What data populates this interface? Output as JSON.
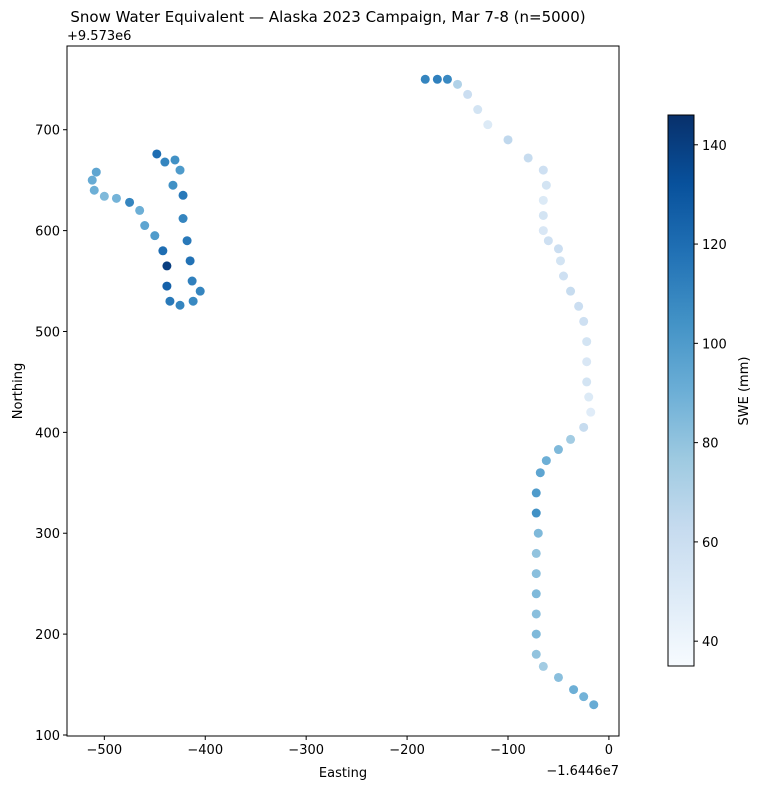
{
  "chart_data": {
    "type": "scatter",
    "title": "Snow Water Equivalent — Alaska 2023 Campaign, Mar 7-8 (n=5000)",
    "xlabel": "Easting",
    "ylabel": "Northing",
    "x_offset_label": "−1.6446e7",
    "y_offset_label": "+9.573e6",
    "xlim": [
      -537,
      10
    ],
    "ylim": [
      99,
      783
    ],
    "xticks": [
      {
        "value": -500,
        "label": "−500"
      },
      {
        "value": -400,
        "label": "−400"
      },
      {
        "value": -300,
        "label": "−300"
      },
      {
        "value": -200,
        "label": "−200"
      },
      {
        "value": -100,
        "label": "−100"
      },
      0
    ],
    "yticks": [
      100,
      200,
      300,
      400,
      500,
      600,
      700
    ],
    "colormap": "Blues",
    "colorbar_label": "SWE (mm)",
    "clim": [
      35,
      146
    ],
    "cticks": [
      40,
      60,
      80,
      100,
      120,
      140
    ],
    "x": [
      -182,
      -170,
      -160,
      -150,
      -140,
      -130,
      -120,
      -100,
      -80,
      -65,
      -62,
      -65,
      -65,
      -65,
      -60,
      -50,
      -48,
      -45,
      -38,
      -30,
      -25,
      -22,
      -22,
      -22,
      -20,
      -18,
      -25,
      -38,
      -50,
      -62,
      -68,
      -72,
      -72,
      -70,
      -72,
      -72,
      -72,
      -72,
      -72,
      -72,
      -65,
      -50,
      -35,
      -25,
      -15,
      -448,
      -440,
      -430,
      -425,
      -432,
      -422,
      -422,
      -418,
      -415,
      -413,
      -405,
      -412,
      -425,
      -435,
      -438,
      -438,
      -442,
      -450,
      -460,
      -465,
      -475,
      -488,
      -500,
      -510,
      -512,
      -508
    ],
    "values": [
      750,
      750,
      750,
      745,
      735,
      720,
      705,
      690,
      672,
      660,
      645,
      630,
      615,
      600,
      590,
      582,
      570,
      555,
      540,
      525,
      510,
      490,
      470,
      450,
      435,
      420,
      405,
      393,
      383,
      372,
      360,
      340,
      320,
      300,
      280,
      260,
      240,
      220,
      200,
      180,
      168,
      157,
      145,
      138,
      130,
      676,
      668,
      670,
      660,
      645,
      635,
      612,
      590,
      570,
      550,
      540,
      530,
      526,
      530,
      545,
      565,
      580,
      595,
      605,
      620,
      628,
      632,
      634,
      640,
      650,
      658
    ],
    "swe": [
      110,
      112,
      108,
      70,
      60,
      55,
      50,
      65,
      62,
      58,
      55,
      50,
      55,
      52,
      58,
      60,
      55,
      58,
      62,
      60,
      58,
      55,
      52,
      55,
      50,
      48,
      62,
      75,
      85,
      90,
      95,
      100,
      105,
      85,
      80,
      82,
      85,
      82,
      85,
      80,
      75,
      82,
      90,
      88,
      92,
      120,
      110,
      105,
      100,
      105,
      115,
      110,
      115,
      118,
      112,
      110,
      108,
      110,
      115,
      125,
      140,
      120,
      100,
      95,
      90,
      110,
      88,
      85,
      90,
      92,
      95
    ]
  }
}
